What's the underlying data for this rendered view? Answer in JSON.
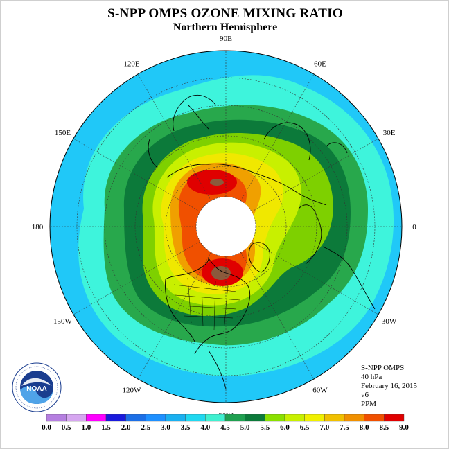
{
  "title": "S-NPP OMPS OZONE MIXING RATIO",
  "subtitle": "Northern Hemisphere",
  "longitude_labels": [
    "90E",
    "60E",
    "30E",
    "0",
    "30W",
    "60W",
    "90W",
    "120W",
    "150W",
    "180",
    "150E",
    "120E"
  ],
  "info": {
    "instrument": "S-NPP OMPS",
    "level": "40 hPa",
    "date": "February 16, 2015",
    "version": "v6",
    "units": "PPM"
  },
  "logo": {
    "name": "NOAA",
    "ring_text": "NATIONAL OCEANIC AND ATMOSPHERIC ADMINISTRATION · U.S. DEPARTMENT OF COMMERCE"
  },
  "colorbar": {
    "ticks": [
      "0.0",
      "0.5",
      "1.0",
      "1.5",
      "2.0",
      "2.5",
      "3.0",
      "3.5",
      "4.0",
      "4.5",
      "5.0",
      "5.5",
      "6.0",
      "6.5",
      "7.0",
      "7.5",
      "8.0",
      "8.5",
      "9.0"
    ],
    "colors": [
      "#b57fe0",
      "#d6a6f0",
      "#ff00ff",
      "#1a1adc",
      "#1c6fe6",
      "#1e90ff",
      "#1ab0f0",
      "#20d8f0",
      "#40f0d0",
      "#1fa050",
      "#0c7a3a",
      "#8ae000",
      "#c8f000",
      "#f0f000",
      "#f0c000",
      "#f09000",
      "#f05000",
      "#e00000",
      "#8b5a3c"
    ]
  },
  "map_colors": {
    "ocean_outer": "#20c8f8",
    "cyan": "#3ef4dc",
    "green_light": "#28a84c",
    "green_dark": "#0c7a3a",
    "lime": "#7ed000",
    "yellow_green": "#c8f000",
    "yellow": "#f0e800",
    "orange": "#f0a000",
    "red_orange": "#f05000",
    "red": "#e00000",
    "brown": "#8b5a3c",
    "polar_cap": "#ffffff"
  }
}
